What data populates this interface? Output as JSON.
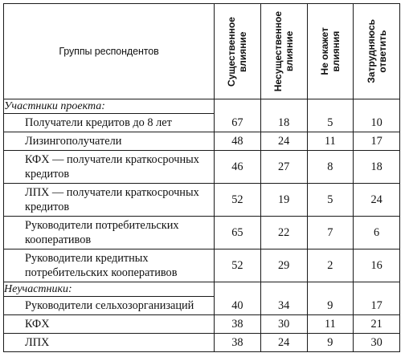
{
  "header": {
    "group": "Группы респондентов",
    "columns": [
      [
        "Существенное",
        "влияние"
      ],
      [
        "Несущественное",
        "влияние"
      ],
      [
        "Не окажет",
        "влияния"
      ],
      [
        "Затрудняюсь",
        "ответить"
      ]
    ]
  },
  "sections": [
    {
      "title": "Участники проекта:",
      "rows": [
        {
          "label": "Получатели кредитов до 8 лет",
          "values": [
            "67",
            "18",
            "5",
            "10"
          ]
        },
        {
          "label": "Лизингополучатели",
          "values": [
            "48",
            "24",
            "11",
            "17"
          ]
        },
        {
          "label": "КФХ — получатели краткосрочных кредитов",
          "values": [
            "46",
            "27",
            "8",
            "18"
          ]
        },
        {
          "label": "ЛПХ — получатели краткосрочных кредитов",
          "values": [
            "52",
            "19",
            "5",
            "24"
          ]
        },
        {
          "label": "Руководители потребительских кооперативов",
          "values": [
            "65",
            "22",
            "7",
            "6"
          ]
        },
        {
          "label": "Руководители кредитных потребительских кооперативов",
          "values": [
            "52",
            "29",
            "2",
            "16"
          ]
        }
      ]
    },
    {
      "title": "Неучастники:",
      "rows": [
        {
          "label": "Руководители сельхозорганизаций",
          "values": [
            "40",
            "34",
            "9",
            "17"
          ]
        },
        {
          "label": "КФХ",
          "values": [
            "38",
            "30",
            "11",
            "21"
          ]
        },
        {
          "label": "ЛПХ",
          "values": [
            "38",
            "24",
            "9",
            "30"
          ]
        }
      ]
    }
  ]
}
